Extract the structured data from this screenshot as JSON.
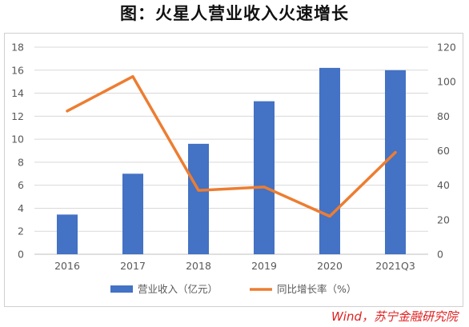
{
  "title": "图：火星人营业收入火速增长",
  "source": "Wind，苏宁金融研究院",
  "chart_data": {
    "type": "bar",
    "categories": [
      "2016",
      "2017",
      "2018",
      "2019",
      "2020",
      "2021Q3"
    ],
    "series": [
      {
        "name": "营业收入（亿元）",
        "type": "bar",
        "axis": "left",
        "color": "#4472C4",
        "values": [
          3.45,
          7.0,
          9.6,
          13.3,
          16.2,
          16.0
        ]
      },
      {
        "name": "同比增长率（%）",
        "type": "line",
        "axis": "right",
        "color": "#ED7D31",
        "values": [
          83,
          103,
          37,
          39,
          22,
          59
        ]
      }
    ],
    "y_left": {
      "min": 0,
      "max": 18,
      "ticks": [
        "0",
        "2",
        "4",
        "6",
        "8",
        "10",
        "12",
        "14",
        "16",
        "18"
      ]
    },
    "y_right": {
      "min": 0,
      "max": 120,
      "ticks": [
        "0",
        "20",
        "40",
        "60",
        "80",
        "100",
        "120"
      ]
    },
    "grid": true,
    "legend_position": "bottom"
  }
}
